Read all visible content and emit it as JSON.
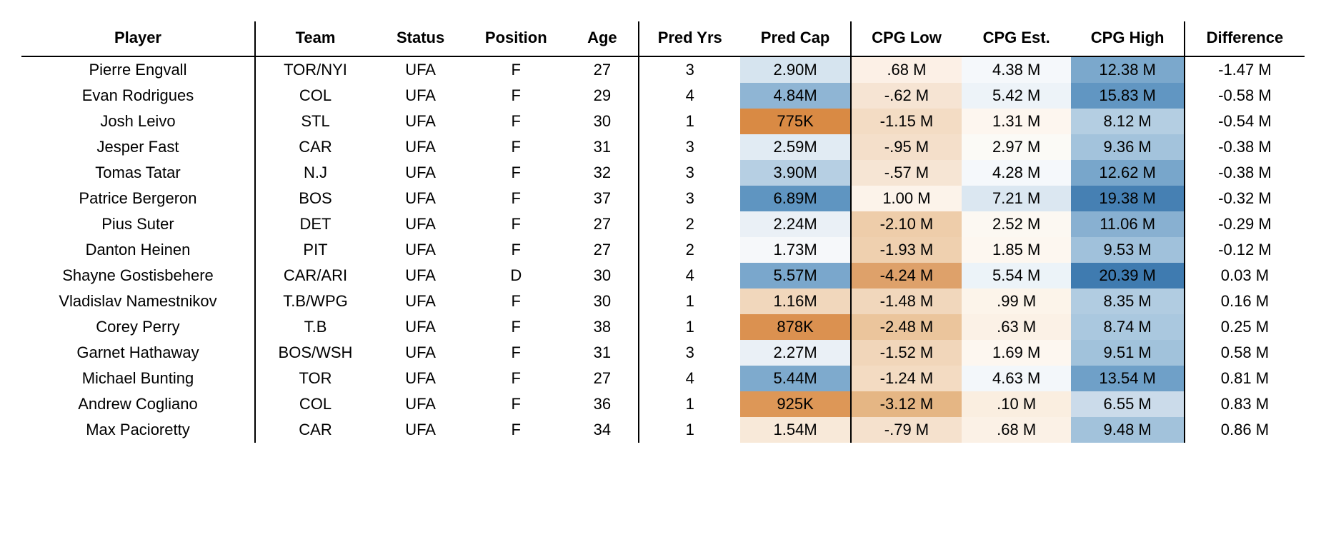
{
  "table": {
    "columns": [
      {
        "key": "player",
        "label": "Player"
      },
      {
        "key": "team",
        "label": "Team"
      },
      {
        "key": "status",
        "label": "Status"
      },
      {
        "key": "position",
        "label": "Position"
      },
      {
        "key": "age",
        "label": "Age"
      },
      {
        "key": "predYrs",
        "label": "Pred Yrs"
      },
      {
        "key": "predCap",
        "label": "Pred Cap"
      },
      {
        "key": "cpgLow",
        "label": "CPG Low"
      },
      {
        "key": "cpgEst",
        "label": "CPG Est."
      },
      {
        "key": "cpgHigh",
        "label": "CPG High"
      },
      {
        "key": "diff",
        "label": "Difference"
      }
    ],
    "group_borders_after_cols": [
      0,
      4,
      6,
      9
    ],
    "header_fontsize": 22,
    "body_fontsize": 22,
    "rows": [
      {
        "player": "Pierre Engvall",
        "team": "TOR/NYI",
        "status": "UFA",
        "position": "F",
        "age": "27",
        "predYrs": "3",
        "predCap": {
          "text": "2.90M",
          "bg": "#d6e4ef"
        },
        "cpgLow": {
          "text": ".68 M",
          "bg": "#fcf0e6"
        },
        "cpgEst": {
          "text": "4.38 M",
          "bg": "#f5f8fb"
        },
        "cpgHigh": {
          "text": "12.38 M",
          "bg": "#7ba8cc"
        },
        "diff": "-1.47 M"
      },
      {
        "player": "Evan Rodrigues",
        "team": "COL",
        "status": "UFA",
        "position": "F",
        "age": "29",
        "predYrs": "4",
        "predCap": {
          "text": "4.84M",
          "bg": "#8fb5d4"
        },
        "cpgLow": {
          "text": "-.62 M",
          "bg": "#f6e4d3"
        },
        "cpgEst": {
          "text": "5.42 M",
          "bg": "#edf3f8"
        },
        "cpgHigh": {
          "text": "15.83 M",
          "bg": "#6196c2"
        },
        "diff": "-0.58 M"
      },
      {
        "player": "Josh Leivo",
        "team": "STL",
        "status": "UFA",
        "position": "F",
        "age": "30",
        "predYrs": "1",
        "predCap": {
          "text": "775K",
          "bg": "#d98a44"
        },
        "cpgLow": {
          "text": "-1.15 M",
          "bg": "#f3dcc4"
        },
        "cpgEst": {
          "text": "1.31 M",
          "bg": "#fdf6ef"
        },
        "cpgHigh": {
          "text": "8.12 M",
          "bg": "#b4cee2"
        },
        "diff": "-0.54 M"
      },
      {
        "player": "Jesper Fast",
        "team": "CAR",
        "status": "UFA",
        "position": "F",
        "age": "31",
        "predYrs": "3",
        "predCap": {
          "text": "2.59M",
          "bg": "#e1ebf3"
        },
        "cpgLow": {
          "text": "-.95 M",
          "bg": "#f4dfca"
        },
        "cpgEst": {
          "text": "2.97 M",
          "bg": "#fbfaf6"
        },
        "cpgHigh": {
          "text": "9.36 M",
          "bg": "#a3c3dc"
        },
        "diff": "-0.38 M"
      },
      {
        "player": "Tomas Tatar",
        "team": "N.J",
        "status": "UFA",
        "position": "F",
        "age": "32",
        "predYrs": "3",
        "predCap": {
          "text": "3.90M",
          "bg": "#b6cfe3"
        },
        "cpgLow": {
          "text": "-.57 M",
          "bg": "#f6e5d4"
        },
        "cpgEst": {
          "text": "4.28 M",
          "bg": "#f5f8fb"
        },
        "cpgHigh": {
          "text": "12.62 M",
          "bg": "#78a6cb"
        },
        "diff": "-0.38 M"
      },
      {
        "player": "Patrice Bergeron",
        "team": "BOS",
        "status": "UFA",
        "position": "F",
        "age": "37",
        "predYrs": "3",
        "predCap": {
          "text": "6.89M",
          "bg": "#5f95c1"
        },
        "cpgLow": {
          "text": "1.00 M",
          "bg": "#fcf3ea"
        },
        "cpgEst": {
          "text": "7.21 M",
          "bg": "#dbe7f1"
        },
        "cpgHigh": {
          "text": "19.38 M",
          "bg": "#4680b3"
        },
        "diff": "-0.32 M"
      },
      {
        "player": "Pius Suter",
        "team": "DET",
        "status": "UFA",
        "position": "F",
        "age": "27",
        "predYrs": "2",
        "predCap": {
          "text": "2.24M",
          "bg": "#eaf0f6"
        },
        "cpgLow": {
          "text": "-2.10 M",
          "bg": "#eecdaa"
        },
        "cpgEst": {
          "text": "2.52 M",
          "bg": "#fcf8f2"
        },
        "cpgHigh": {
          "text": "11.06 M",
          "bg": "#88b0d1"
        },
        "diff": "-0.29 M"
      },
      {
        "player": "Danton Heinen",
        "team": "PIT",
        "status": "UFA",
        "position": "F",
        "age": "27",
        "predYrs": "2",
        "predCap": {
          "text": "1.73M",
          "bg": "#f6f8fa"
        },
        "cpgLow": {
          "text": "-1.93 M",
          "bg": "#efd0af"
        },
        "cpgEst": {
          "text": "1.85 M",
          "bg": "#fdf7f0"
        },
        "cpgHigh": {
          "text": "9.53 M",
          "bg": "#a0c1db"
        },
        "diff": "-0.12 M"
      },
      {
        "player": "Shayne Gostisbehere",
        "team": "CAR/ARI",
        "status": "UFA",
        "position": "D",
        "age": "30",
        "predYrs": "4",
        "predCap": {
          "text": "5.57M",
          "bg": "#7aa7cc"
        },
        "cpgLow": {
          "text": "-4.24 M",
          "bg": "#dea16a"
        },
        "cpgEst": {
          "text": "5.54 M",
          "bg": "#ecf3f8"
        },
        "cpgHigh": {
          "text": "20.39 M",
          "bg": "#3f7bb0"
        },
        "diff": "0.03 M"
      },
      {
        "player": "Vladislav Namestnikov",
        "team": "T.B/WPG",
        "status": "UFA",
        "position": "F",
        "age": "30",
        "predYrs": "1",
        "predCap": {
          "text": "1.16M",
          "bg": "#f1d7bc"
        },
        "cpgLow": {
          "text": "-1.48 M",
          "bg": "#f1d7bc"
        },
        "cpgEst": {
          "text": ".99 M",
          "bg": "#fcf4ea"
        },
        "cpgHigh": {
          "text": "8.35 M",
          "bg": "#b1cce1"
        },
        "diff": "0.16 M"
      },
      {
        "player": "Corey Perry",
        "team": "T.B",
        "status": "UFA",
        "position": "F",
        "age": "38",
        "predYrs": "1",
        "predCap": {
          "text": "878K",
          "bg": "#db9150"
        },
        "cpgLow": {
          "text": "-2.48 M",
          "bg": "#ebc59c"
        },
        "cpgEst": {
          "text": ".63 M",
          "bg": "#fbf1e6"
        },
        "cpgHigh": {
          "text": "8.74 M",
          "bg": "#aac8df"
        },
        "diff": "0.25 M"
      },
      {
        "player": "Garnet Hathaway",
        "team": "BOS/WSH",
        "status": "UFA",
        "position": "F",
        "age": "31",
        "predYrs": "3",
        "predCap": {
          "text": "2.27M",
          "bg": "#eaf0f6"
        },
        "cpgLow": {
          "text": "-1.52 M",
          "bg": "#f1d6ba"
        },
        "cpgEst": {
          "text": "1.69 M",
          "bg": "#fdf7f0"
        },
        "cpgHigh": {
          "text": "9.51 M",
          "bg": "#a1c2db"
        },
        "diff": "0.58 M"
      },
      {
        "player": "Michael Bunting",
        "team": "TOR",
        "status": "UFA",
        "position": "F",
        "age": "27",
        "predYrs": "4",
        "predCap": {
          "text": "5.44M",
          "bg": "#7eaacd"
        },
        "cpgLow": {
          "text": "-1.24 M",
          "bg": "#f3dbc2"
        },
        "cpgEst": {
          "text": "4.63 M",
          "bg": "#f3f7fa"
        },
        "cpgHigh": {
          "text": "13.54 M",
          "bg": "#6fa0c8"
        },
        "diff": "0.81 M"
      },
      {
        "player": "Andrew Cogliano",
        "team": "COL",
        "status": "UFA",
        "position": "F",
        "age": "36",
        "predYrs": "1",
        "predCap": {
          "text": "925K",
          "bg": "#dd9757"
        },
        "cpgLow": {
          "text": "-3.12 M",
          "bg": "#e5b684"
        },
        "cpgEst": {
          "text": ".10 M",
          "bg": "#faeee0"
        },
        "cpgHigh": {
          "text": "6.55 M",
          "bg": "#cbdbea"
        },
        "diff": "0.83 M"
      },
      {
        "player": "Max Pacioretty",
        "team": "CAR",
        "status": "UFA",
        "position": "F",
        "age": "34",
        "predYrs": "1",
        "predCap": {
          "text": "1.54M",
          "bg": "#f8e9d9"
        },
        "cpgLow": {
          "text": "-.79 M",
          "bg": "#f5e1cd"
        },
        "cpgEst": {
          "text": ".68 M",
          "bg": "#fbf1e6"
        },
        "cpgHigh": {
          "text": "9.48 M",
          "bg": "#a2c2db"
        },
        "diff": "0.86 M"
      }
    ]
  }
}
